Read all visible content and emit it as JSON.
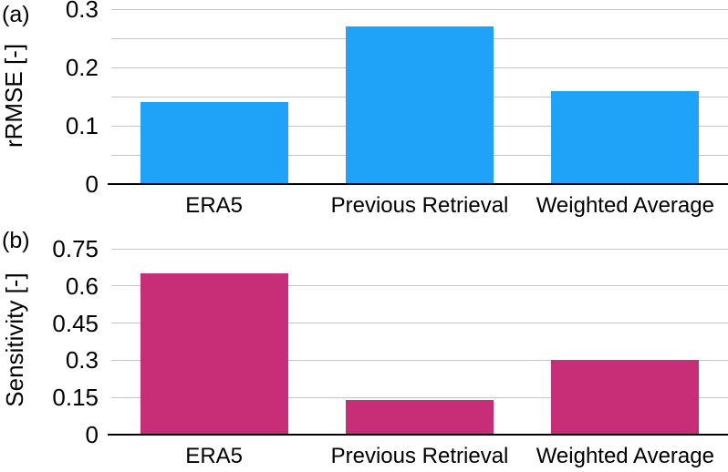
{
  "chart_data": [
    {
      "type": "bar",
      "panel_label": "(a)",
      "ylabel": "rRMSE [-]",
      "xlabel": "",
      "categories": [
        "ERA5",
        "Previous Retrieval",
        "Weighted Average"
      ],
      "values": [
        0.14,
        0.27,
        0.16
      ],
      "ylim": [
        0,
        0.3
      ],
      "yticks": [
        0,
        0.1,
        0.2,
        0.3
      ],
      "gridlines": [
        0.05,
        0.1,
        0.15,
        0.2,
        0.25,
        0.3
      ],
      "grid_on": true,
      "legend_position": "none",
      "bar_color": "#1EA3F9",
      "grid_color": "#c6c6c6",
      "axis_color": "#000000",
      "text_color": "#000000"
    },
    {
      "type": "bar",
      "panel_label": "(b)",
      "ylabel": "Sensitivity [-]",
      "xlabel": "",
      "categories": [
        "ERA5",
        "Previous Retrieval",
        "Weighted Average"
      ],
      "values": [
        0.65,
        0.14,
        0.3
      ],
      "ylim": [
        0,
        0.75
      ],
      "yticks": [
        0,
        0.15,
        0.3,
        0.45,
        0.6,
        0.75
      ],
      "gridlines": [
        0.15,
        0.3,
        0.45,
        0.6,
        0.75
      ],
      "grid_on": true,
      "legend_position": "none",
      "bar_color": "#C82E78",
      "grid_color": "#c6c6c6",
      "axis_color": "#000000",
      "text_color": "#000000"
    }
  ]
}
